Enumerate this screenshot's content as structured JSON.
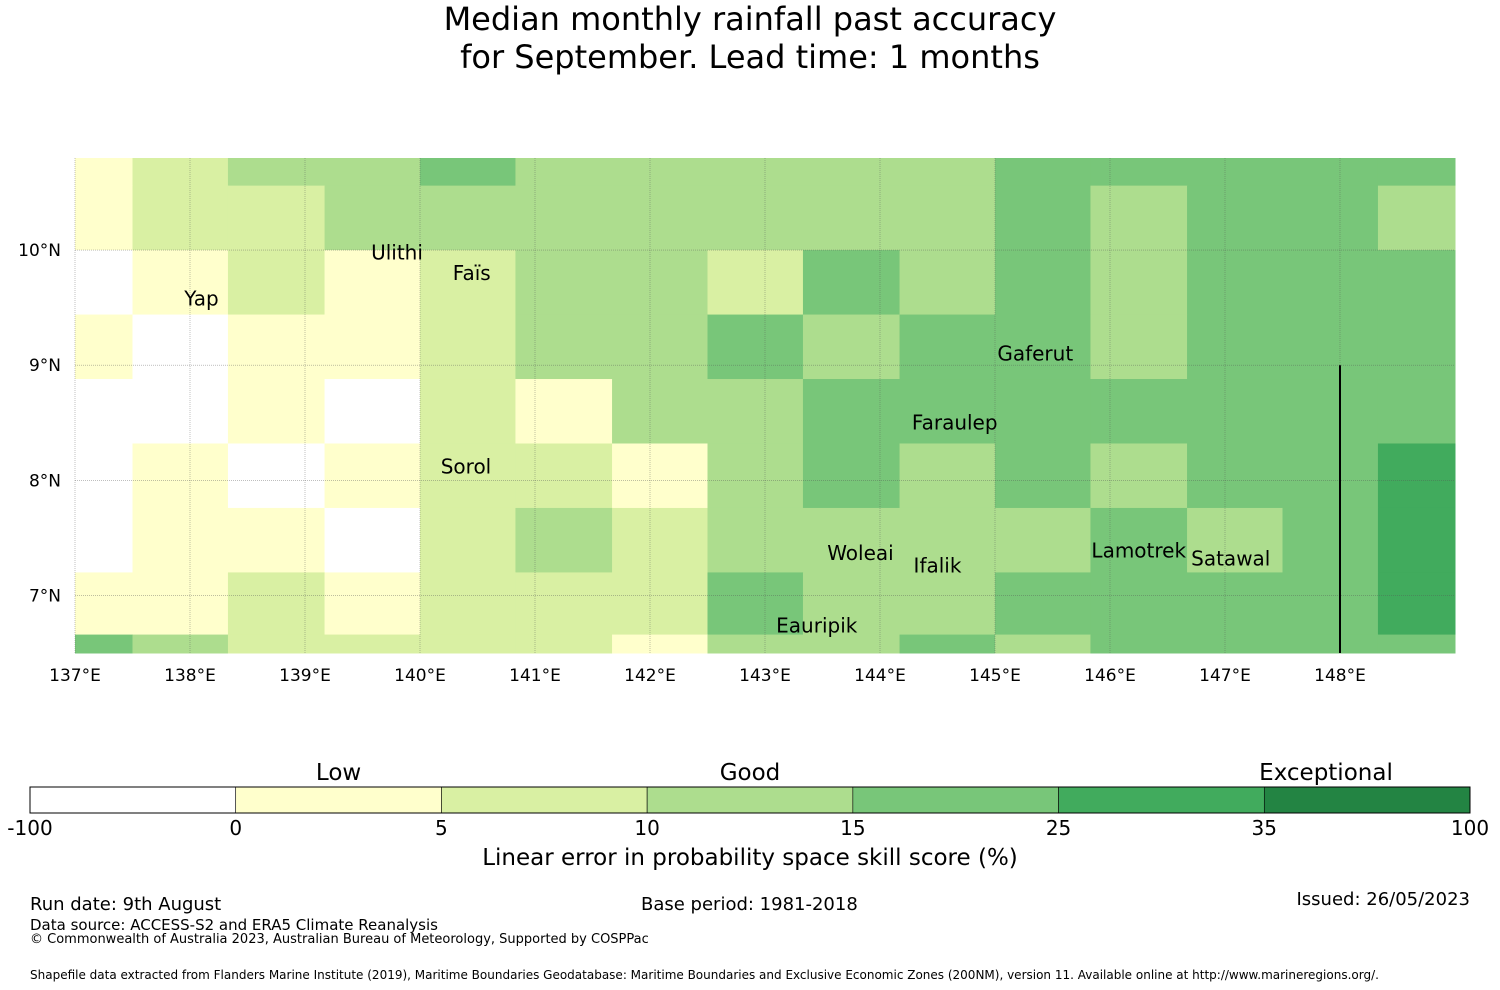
{
  "title": {
    "line1": "Median monthly rainfall past accuracy",
    "line2": "for September. Lead time: 1 months"
  },
  "map": {
    "x_ticks": [
      "137°E",
      "138°E",
      "139°E",
      "140°E",
      "141°E",
      "142°E",
      "143°E",
      "144°E",
      "145°E",
      "146°E",
      "147°E",
      "148°E"
    ],
    "x_tick_values": [
      137,
      138,
      139,
      140,
      141,
      142,
      143,
      144,
      145,
      146,
      147,
      148
    ],
    "y_ticks": [
      "10°N",
      "9°N",
      "8°N",
      "7°N"
    ],
    "y_tick_values": [
      10,
      9,
      8,
      7
    ],
    "lon_range": [
      137.0,
      149.0
    ],
    "lat_range": [
      6.5,
      10.8
    ],
    "grid": true,
    "category_colors": [
      "#ffffff",
      "#ffffcc",
      "#d9f0a3",
      "#addd8e",
      "#78c679",
      "#41ab5d",
      "#238443"
    ],
    "category_note": "category index = colorbar bin (0:-100..0, 1:0..5, 2:5..10, 3:10..15, 4:15..25, 5:25..35, 6:35..100)",
    "grid_lon_edges": [
      137.0,
      137.5,
      138.33,
      139.17,
      140.0,
      140.83,
      141.67,
      142.5,
      143.33,
      144.17,
      145.0,
      145.83,
      146.67,
      147.5,
      148.33,
      149.0
    ],
    "grid_lat_edges": [
      10.8,
      10.56,
      10.0,
      9.44,
      8.88,
      8.32,
      7.76,
      7.2,
      6.66,
      6.5
    ],
    "cells": [
      [
        1,
        2,
        3,
        3,
        4,
        3,
        3,
        3,
        3,
        3,
        4,
        4,
        4,
        4,
        4
      ],
      [
        1,
        2,
        2,
        3,
        3,
        3,
        3,
        3,
        3,
        3,
        4,
        3,
        4,
        4,
        3
      ],
      [
        0,
        1,
        2,
        1,
        2,
        3,
        3,
        2,
        4,
        3,
        4,
        3,
        4,
        4,
        4
      ],
      [
        1,
        0,
        1,
        1,
        2,
        3,
        3,
        4,
        3,
        4,
        4,
        3,
        4,
        4,
        4
      ],
      [
        0,
        0,
        1,
        0,
        2,
        1,
        3,
        3,
        4,
        4,
        4,
        4,
        4,
        4,
        4
      ],
      [
        0,
        1,
        0,
        1,
        2,
        2,
        1,
        3,
        4,
        3,
        4,
        3,
        4,
        4,
        5
      ],
      [
        0,
        1,
        1,
        0,
        2,
        3,
        2,
        3,
        3,
        3,
        3,
        4,
        3,
        4,
        5
      ],
      [
        1,
        1,
        2,
        1,
        2,
        2,
        2,
        4,
        3,
        3,
        4,
        4,
        4,
        4,
        5
      ],
      [
        4,
        3,
        2,
        2,
        2,
        2,
        1,
        3,
        3,
        4,
        3,
        4,
        4,
        4,
        4
      ]
    ],
    "places": [
      {
        "name": "Ulithi",
        "lon": 139.8,
        "lat": 9.92
      },
      {
        "name": "Yap",
        "lon": 138.1,
        "lat": 9.52
      },
      {
        "name": "Faïs",
        "lon": 140.45,
        "lat": 9.74
      },
      {
        "name": "Gaferut",
        "lon": 145.35,
        "lat": 9.04
      },
      {
        "name": "Faraulep",
        "lon": 144.65,
        "lat": 8.44
      },
      {
        "name": "Sorol",
        "lon": 140.4,
        "lat": 8.06
      },
      {
        "name": "Woleai",
        "lon": 143.83,
        "lat": 7.31
      },
      {
        "name": "Ifalik",
        "lon": 144.5,
        "lat": 7.2
      },
      {
        "name": "Lamotrek",
        "lon": 146.25,
        "lat": 7.33
      },
      {
        "name": "Satawal",
        "lon": 147.05,
        "lat": 7.26
      },
      {
        "name": "Eauripik",
        "lon": 143.45,
        "lat": 6.68
      }
    ],
    "boundary_line": {
      "lon": 148.0,
      "lat_from": 6.5,
      "lat_to": 9.0
    }
  },
  "colorbar": {
    "headers": [
      {
        "text": "Low",
        "value_index": 1.5
      },
      {
        "text": "Good",
        "value_index": 3.5
      },
      {
        "text": "Exceptional",
        "value_index": 6.3
      }
    ],
    "bounds": [
      "-100",
      "0",
      "5",
      "10",
      "15",
      "25",
      "35",
      "100"
    ],
    "colors": [
      "#ffffff",
      "#ffffcc",
      "#d9f0a3",
      "#addd8e",
      "#78c679",
      "#41ab5d",
      "#238443"
    ],
    "label": "Linear error in probability space skill score (%)"
  },
  "footer": {
    "run_date": "Run date: 9th August",
    "base_period": "Base period: 1981-2018",
    "issued": "Issued: 26/05/2023",
    "data_source": "Data source: ACCESS-S2 and ERA5 Climate Reanalysis",
    "copyright": "© Commonwealth of Australia 2023, Australian Bureau of Meteorology, Supported by COSPPac",
    "shapefile": "Shapefile data extracted from Flanders Marine Institute (2019), Maritime Boundaries Geodatabase: Maritime Boundaries and Exclusive Economic Zones (200NM), version 11. Available online at http://www.marineregions.org/."
  }
}
